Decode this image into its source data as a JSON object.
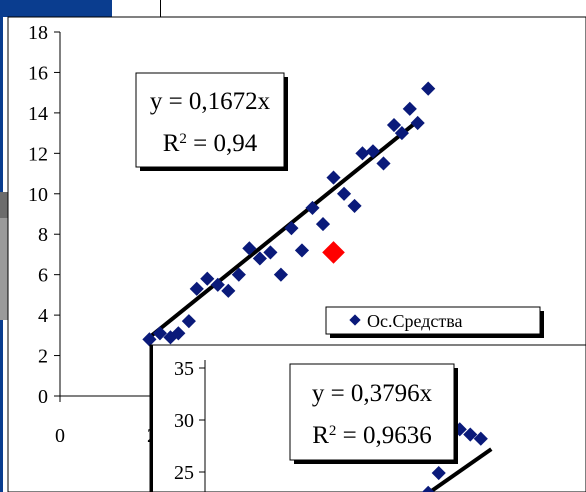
{
  "chart_data": [
    {
      "type": "scatter",
      "title": "",
      "xlabel": "",
      "ylabel": "",
      "ylim": [
        0,
        18
      ],
      "xlim": [
        0,
        100
      ],
      "y_ticks": [
        "18",
        "16",
        "14",
        "12",
        "10",
        "8",
        "6",
        "4",
        "2",
        "0"
      ],
      "x_ticks": [
        "0",
        "2"
      ],
      "equation": "y = 0,1672x",
      "r2_label": "R",
      "r2_exp": "2",
      "r2_value": " = 0,94",
      "legend_label": "Ос.Средства",
      "series": [
        {
          "marker_color": "#0a1a7a",
          "points": [
            [
              17,
              2.8
            ],
            [
              19,
              3.1
            ],
            [
              21,
              2.9
            ],
            [
              22.5,
              3.1
            ],
            [
              24.5,
              3.7
            ],
            [
              26,
              5.3
            ],
            [
              28,
              5.8
            ],
            [
              30,
              5.5
            ],
            [
              32,
              5.2
            ],
            [
              34,
              6.0
            ],
            [
              36,
              7.3
            ],
            [
              38,
              6.8
            ],
            [
              40,
              7.1
            ],
            [
              42,
              6.0
            ],
            [
              44,
              8.3
            ],
            [
              46,
              7.2
            ],
            [
              48,
              9.3
            ],
            [
              50,
              8.5
            ],
            [
              52,
              10.8
            ],
            [
              54,
              10.0
            ],
            [
              56,
              9.4
            ],
            [
              57.5,
              12.0
            ],
            [
              59.5,
              12.1
            ],
            [
              61.5,
              11.5
            ],
            [
              63.5,
              13.4
            ],
            [
              65,
              13.0
            ],
            [
              66.5,
              14.2
            ],
            [
              68,
              13.5
            ],
            [
              70,
              15.2
            ]
          ]
        }
      ],
      "highlight_point": {
        "x": 52,
        "y": 7.1,
        "color": "#ff0000"
      },
      "trendline": {
        "x1": 17,
        "y1": 2.9,
        "x2": 68.5,
        "y2": 13.7
      }
    },
    {
      "type": "scatter",
      "title": "",
      "y_ticks": [
        "35",
        "30",
        "25"
      ],
      "x_ticks": [],
      "equation": "y = 0,3796x",
      "r2_label": "R",
      "r2_exp": "2",
      "r2_value": " = 0,9636",
      "series": [
        {
          "marker_color": "#0a1a7a",
          "points": [
            [
              70,
              23.0
            ],
            [
              72,
              24.9
            ],
            [
              76,
              29.1
            ],
            [
              78,
              28.6
            ],
            [
              80,
              28.2
            ]
          ]
        }
      ],
      "trendline": {
        "x1": 69,
        "y1": 22.6,
        "x2": 82,
        "y2": 27.2
      }
    }
  ]
}
